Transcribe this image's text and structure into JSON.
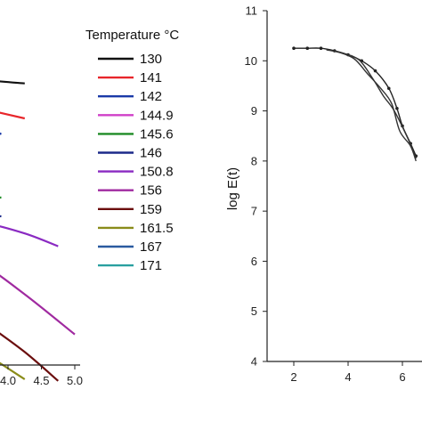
{
  "chart_data": [
    {
      "type": "line",
      "title": "",
      "xlabel": "",
      "ylabel": "",
      "xlim": [
        2.9,
        5.1
      ],
      "ylim": [
        0,
        1
      ],
      "x_ticks": [
        "4.0",
        "4.5",
        "5.0"
      ],
      "legend": {
        "title": "Temperature °C",
        "position": "right"
      },
      "series": [
        {
          "name": "130",
          "color": "#111111",
          "points": [
            [
              2.9,
              0.905
            ],
            [
              3.6,
              0.885
            ],
            [
              4.25,
              0.873
            ]
          ]
        },
        {
          "name": "141",
          "color": "#e8262b",
          "points": [
            [
              2.9,
              0.83
            ],
            [
              3.6,
              0.795
            ],
            [
              4.25,
              0.764
            ]
          ]
        },
        {
          "name": "142",
          "color": "#1a3aa8",
          "points": [
            [
              2.9,
              0.775
            ],
            [
              3.6,
              0.738
            ],
            [
              3.9,
              0.715
            ]
          ]
        },
        {
          "name": "144.9",
          "color": "#d040c8",
          "points": []
        },
        {
          "name": "145.6",
          "color": "#1e8c26",
          "points": [
            [
              2.9,
              0.525
            ],
            [
              3.9,
              0.517
            ]
          ]
        },
        {
          "name": "146",
          "color": "#1c2a8a",
          "points": [
            [
              2.9,
              0.495
            ],
            [
              3.9,
              0.458
            ]
          ]
        },
        {
          "name": "150.8",
          "color": "#8a2ac2",
          "points": [
            [
              2.9,
              0.455
            ],
            [
              3.6,
              0.44
            ],
            [
              4.25,
              0.405
            ],
            [
              4.75,
              0.365
            ]
          ]
        },
        {
          "name": "156",
          "color": "#a02aa0",
          "points": [
            [
              2.9,
              0.37
            ],
            [
              3.6,
              0.31
            ],
            [
              4.25,
              0.215
            ],
            [
              5.0,
              0.09
            ]
          ]
        },
        {
          "name": "159",
          "color": "#6b0e0e",
          "points": [
            [
              2.9,
              0.245
            ],
            [
              3.6,
              0.135
            ],
            [
              4.25,
              0.035
            ],
            [
              4.75,
              -0.055
            ]
          ]
        },
        {
          "name": "161.5",
          "color": "#8a8c1a",
          "points": [
            [
              2.9,
              0.115
            ],
            [
              3.5,
              0.05
            ],
            [
              4.25,
              -0.05
            ]
          ]
        },
        {
          "name": "167",
          "color": "#2a5aa0",
          "points": []
        },
        {
          "name": "171",
          "color": "#2aa0a0",
          "points": []
        }
      ]
    },
    {
      "type": "line",
      "title": "",
      "xlabel": "",
      "ylabel": "log E(t)",
      "xlim": [
        1,
        7.5
      ],
      "ylim": [
        4,
        11
      ],
      "x_ticks": [
        "2",
        "4",
        "6"
      ],
      "y_ticks": [
        "4",
        "5",
        "6",
        "7",
        "8",
        "9",
        "10",
        "11"
      ],
      "series": [
        {
          "name": "",
          "color": "#222222",
          "marker": "dot",
          "points": [
            [
              2,
              10.25
            ],
            [
              2.5,
              10.25
            ],
            [
              3,
              10.25
            ],
            [
              3.5,
              10.2
            ],
            [
              4,
              10.12
            ],
            [
              4.5,
              10.0
            ],
            [
              5,
              9.8
            ],
            [
              5.5,
              9.45
            ],
            [
              5.8,
              9.05
            ],
            [
              6,
              8.7
            ],
            [
              6.3,
              8.35
            ],
            [
              6.5,
              8.1
            ]
          ]
        },
        {
          "name": "",
          "color": "#333333",
          "marker": "none",
          "points": [
            [
              3.2,
              10.22
            ],
            [
              3.8,
              10.15
            ],
            [
              4.4,
              10.02
            ],
            [
              4.9,
              9.65
            ],
            [
              5.3,
              9.3
            ],
            [
              5.7,
              9.0
            ],
            [
              6.2,
              8.45
            ],
            [
              6.5,
              8.05
            ]
          ]
        },
        {
          "name": "",
          "color": "#333333",
          "marker": "none",
          "points": [
            [
              3.5,
              10.2
            ],
            [
              4.2,
              10.05
            ],
            [
              4.7,
              9.75
            ],
            [
              5.2,
              9.45
            ],
            [
              5.6,
              9.15
            ],
            [
              5.9,
              8.6
            ],
            [
              6.3,
              8.3
            ],
            [
              6.5,
              8.0
            ]
          ]
        }
      ]
    }
  ]
}
